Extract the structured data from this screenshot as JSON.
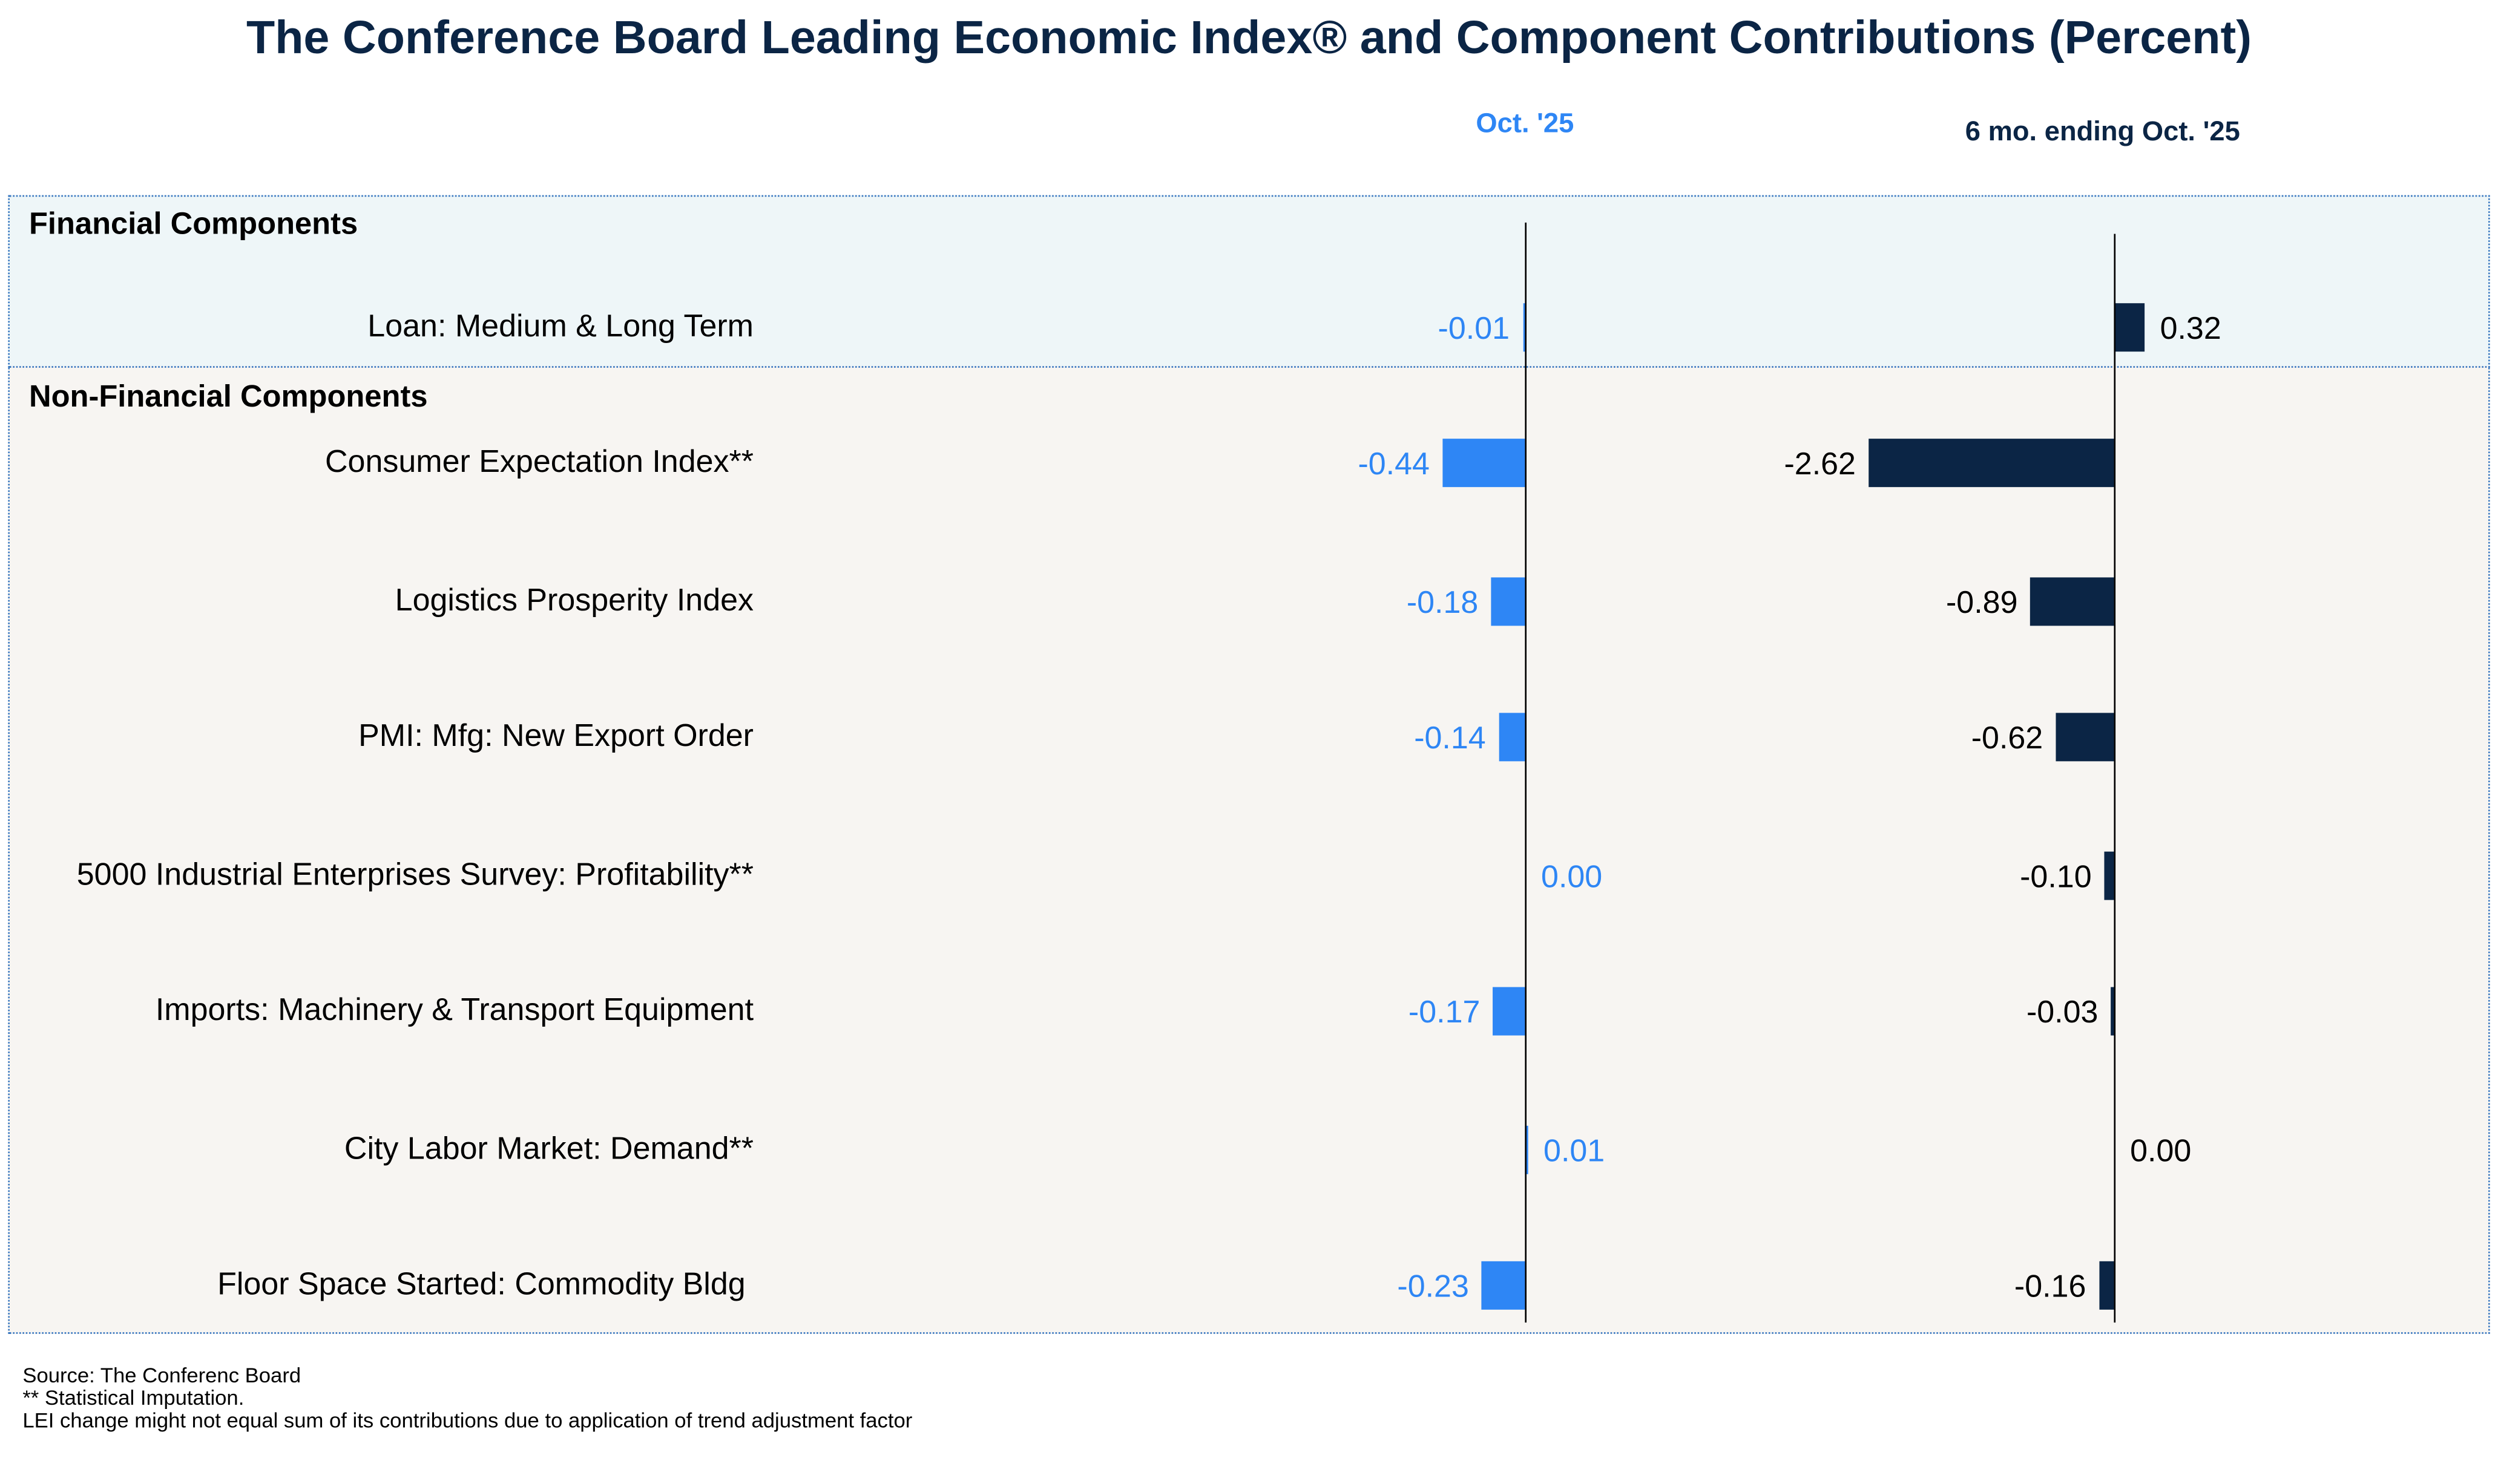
{
  "chart_data": {
    "type": "bar",
    "title": "The Conference Board Leading Economic Index® and Component Contributions (Percent)",
    "series": [
      {
        "name": "Oct. '25",
        "color": "#2e86f5",
        "values": [
          -0.01,
          -0.44,
          -0.18,
          -0.14,
          0.0,
          -0.17,
          0.01,
          -0.23
        ]
      },
      {
        "name": "6 mo. ending Oct. '25",
        "color": "#0b2545",
        "values": [
          0.32,
          -2.62,
          -0.89,
          -0.62,
          -0.1,
          -0.03,
          0.0,
          -0.16
        ]
      }
    ],
    "sections": [
      {
        "title": "Financial Components",
        "rows": [
          0
        ]
      },
      {
        "title": "Non-Financial Components",
        "rows": [
          1,
          2,
          3,
          4,
          5,
          6,
          7
        ]
      }
    ],
    "categories": [
      "Loan: Medium & Long Term",
      "Consumer Expectation Index**",
      "Logistics Prosperity Index",
      "PMI: Mfg: New Export Order",
      "5000 Industrial Enterprises Survey: Profitability**",
      "Imports: Machinery & Transport Equipment",
      "City Labor Market: Demand**",
      "Floor Space Started: Commodity Bldg"
    ]
  },
  "footer": {
    "source": "Source: The Conferenc Board",
    "note1": "**  Statistical Imputation.",
    "note2": "LEI change might not equal sum of its contributions due to application of trend adjustment factor"
  }
}
